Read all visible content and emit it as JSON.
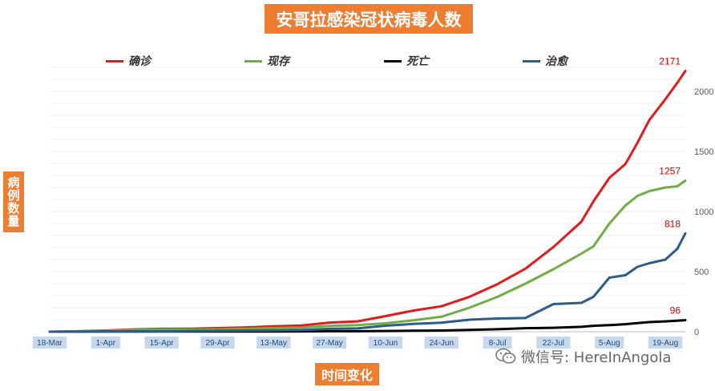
{
  "chart_data": {
    "type": "line",
    "title": "安哥拉感染冠状病毒人数",
    "ylabel": "病例数量",
    "xlabel": "时间变化",
    "ylim": [
      0,
      2200
    ],
    "yticks": [
      0,
      500,
      1000,
      1500,
      2000
    ],
    "x_tick_labels": [
      "18-Mar",
      "1-Apr",
      "15-Apr",
      "29-Apr",
      "13-May",
      "27-May",
      "10-Jun",
      "24-Jun",
      "8-Jul",
      "22-Jul",
      "5-Aug",
      "19-Aug"
    ],
    "legend_placement": "top",
    "grid": true,
    "x_dates": [
      "3-18",
      "3-25",
      "4-1",
      "4-8",
      "4-15",
      "4-22",
      "4-29",
      "5-6",
      "5-13",
      "5-20",
      "5-27",
      "6-3",
      "6-10",
      "6-17",
      "6-24",
      "7-1",
      "7-8",
      "7-15",
      "7-22",
      "7-29",
      "8-1",
      "8-5",
      "8-9",
      "8-12",
      "8-15",
      "8-19",
      "8-22",
      "8-24"
    ],
    "series": [
      {
        "name": "确诊",
        "color": "#e31a1c",
        "values": [
          0,
          4,
          10,
          19,
          24,
          25,
          30,
          36,
          45,
          52,
          76,
          86,
          130,
          176,
          212,
          291,
          396,
          525,
          705,
          916,
          1084,
          1280,
          1395,
          1572,
          1762,
          1935,
          2071,
          2171
        ],
        "end_label": "2171"
      },
      {
        "name": "现存",
        "color": "#70ad47",
        "values": [
          0,
          3,
          8,
          15,
          18,
          17,
          20,
          25,
          30,
          35,
          48,
          55,
          70,
          95,
          125,
          200,
          290,
          400,
          520,
          650,
          710,
          900,
          1050,
          1130,
          1170,
          1200,
          1210,
          1257
        ],
        "end_label": "1257"
      },
      {
        "name": "死亡",
        "color": "#000000",
        "values": [
          0,
          0,
          2,
          2,
          2,
          2,
          2,
          2,
          2,
          3,
          4,
          4,
          6,
          8,
          10,
          15,
          21,
          29,
          33,
          41,
          49,
          55,
          63,
          72,
          80,
          86,
          92,
          96
        ],
        "end_label": "96"
      },
      {
        "name": "治愈",
        "color": "#2e5c8a",
        "values": [
          0,
          1,
          1,
          2,
          3,
          6,
          7,
          10,
          11,
          14,
          24,
          27,
          50,
          65,
          75,
          100,
          110,
          114,
          230,
          240,
          290,
          450,
          470,
          540,
          570,
          600,
          690,
          818
        ],
        "end_label": "818"
      }
    ]
  },
  "watermark": {
    "text": "微信号: HereInAngola",
    "icon": "wechat-icon"
  }
}
